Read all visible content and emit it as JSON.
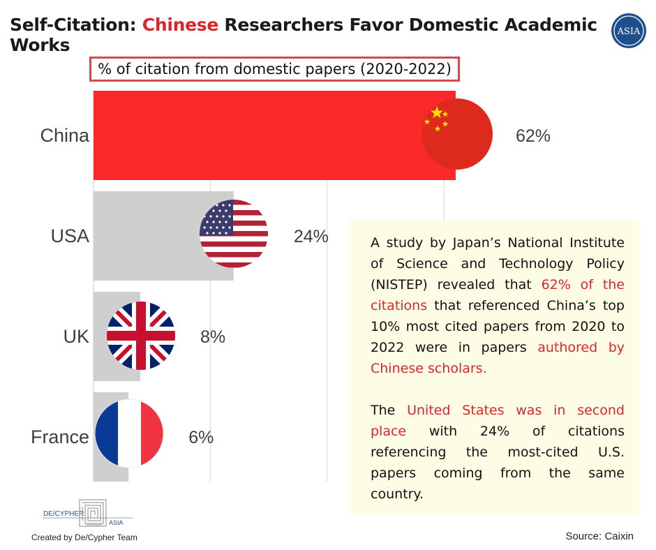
{
  "header": {
    "title_prefix": "Self-Citation: ",
    "title_accent": "Chinese",
    "title_suffix": " Researchers Favor Domestic Academic Works",
    "logo_text": "ASIA"
  },
  "chart_data": {
    "type": "bar",
    "orientation": "horizontal",
    "title": "% of citation from domestic papers (2020-2022)",
    "categories": [
      "China",
      "USA",
      "UK",
      "France"
    ],
    "values": [
      62,
      24,
      8,
      6
    ],
    "value_labels": [
      "62%",
      "24%",
      "8%",
      "6%"
    ],
    "xlim": [
      0,
      70
    ],
    "grid": true,
    "bar_colors": [
      "#fb2929",
      "#cfcfcf",
      "#cfcfcf",
      "#cfcfcf"
    ]
  },
  "note": {
    "p1_a": "A study by Japan’s National Institute of Science and Technology Policy (NISTEP) revealed that ",
    "p1_hl1": "62% of the citations",
    "p1_b": " that referenced China’s top 10% most cited papers from 2020 to 2022 were in papers ",
    "p1_hl2": "authored by Chinese scholars.",
    "p2_a": "The ",
    "p2_hl": "United States was in second place",
    "p2_b": " with 24% of citations referencing the most-cited U.S. papers coming from the same country."
  },
  "footer": {
    "credit": "Created by De/Cypher Team",
    "source": "Source: Caixin",
    "logo_left": "DE/CYPHER",
    "logo_right": "ASIA"
  },
  "colors": {
    "accent": "#d9262b",
    "china_bar": "#fb2929",
    "other_bar": "#cfcfcf",
    "note_bg": "#fdfde6"
  }
}
